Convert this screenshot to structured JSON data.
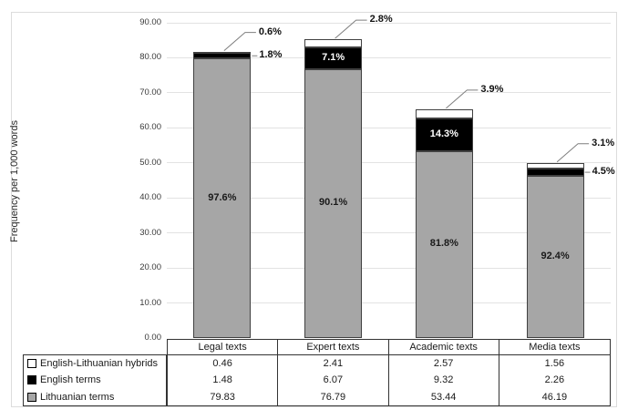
{
  "chart_data": {
    "type": "bar",
    "subtype": "stacked-column",
    "title": "",
    "ylabel": "Frequency per 1,000 words",
    "xlabel": "",
    "ylim": [
      0,
      90
    ],
    "grid": true,
    "legend_position": "bottom-left-table",
    "yticks": [
      "0.00",
      "10.00",
      "20.00",
      "30.00",
      "40.00",
      "50.00",
      "60.00",
      "70.00",
      "80.00",
      "90.00"
    ],
    "categories": [
      "Legal texts",
      "Expert texts",
      "Academic texts",
      "Media texts"
    ],
    "series": [
      {
        "name": "Lithuanian terms",
        "color": "#a6a6a6",
        "values": [
          79.83,
          76.79,
          53.44,
          46.19
        ]
      },
      {
        "name": "English terms",
        "color": "#000000",
        "values": [
          1.48,
          6.07,
          9.32,
          2.26
        ]
      },
      {
        "name": "English-Lithuanian hybrids",
        "color": "#ffffff",
        "values": [
          0.46,
          2.41,
          2.57,
          1.56
        ]
      }
    ],
    "percent_labels": {
      "lithuanian_inside": [
        "97.6%",
        "90.1%",
        "81.8%",
        "92.4%"
      ],
      "english_inside": [
        "",
        "7.1%",
        "14.3%",
        ""
      ],
      "hybrids_callout": [
        "0.6%",
        "2.8%",
        "3.9%",
        "3.1%"
      ],
      "english_callout": [
        "1.8%",
        "",
        "",
        "4.5%"
      ]
    }
  },
  "table": {
    "columns": [
      "Legal texts",
      "Expert texts",
      "Academic texts",
      "Media texts"
    ],
    "rows": [
      {
        "label": "English-Lithuanian hybrids",
        "swatch": "white",
        "values": [
          "0.46",
          "2.41",
          "2.57",
          "1.56"
        ]
      },
      {
        "label": "English terms",
        "swatch": "black",
        "values": [
          "1.48",
          "6.07",
          "9.32",
          "2.26"
        ]
      },
      {
        "label": "Lithuanian terms",
        "swatch": "gray",
        "values": [
          "79.83",
          "76.79",
          "53.44",
          "46.19"
        ]
      }
    ]
  },
  "colors": {
    "gray_fill": "#a6a6a6",
    "black_fill": "#000000",
    "white_fill": "#ffffff",
    "bar_border": "#404040",
    "gridline": "#e2e2e2",
    "leader_line": "#7f7f7f",
    "figure_border": "#dcdcdc"
  }
}
